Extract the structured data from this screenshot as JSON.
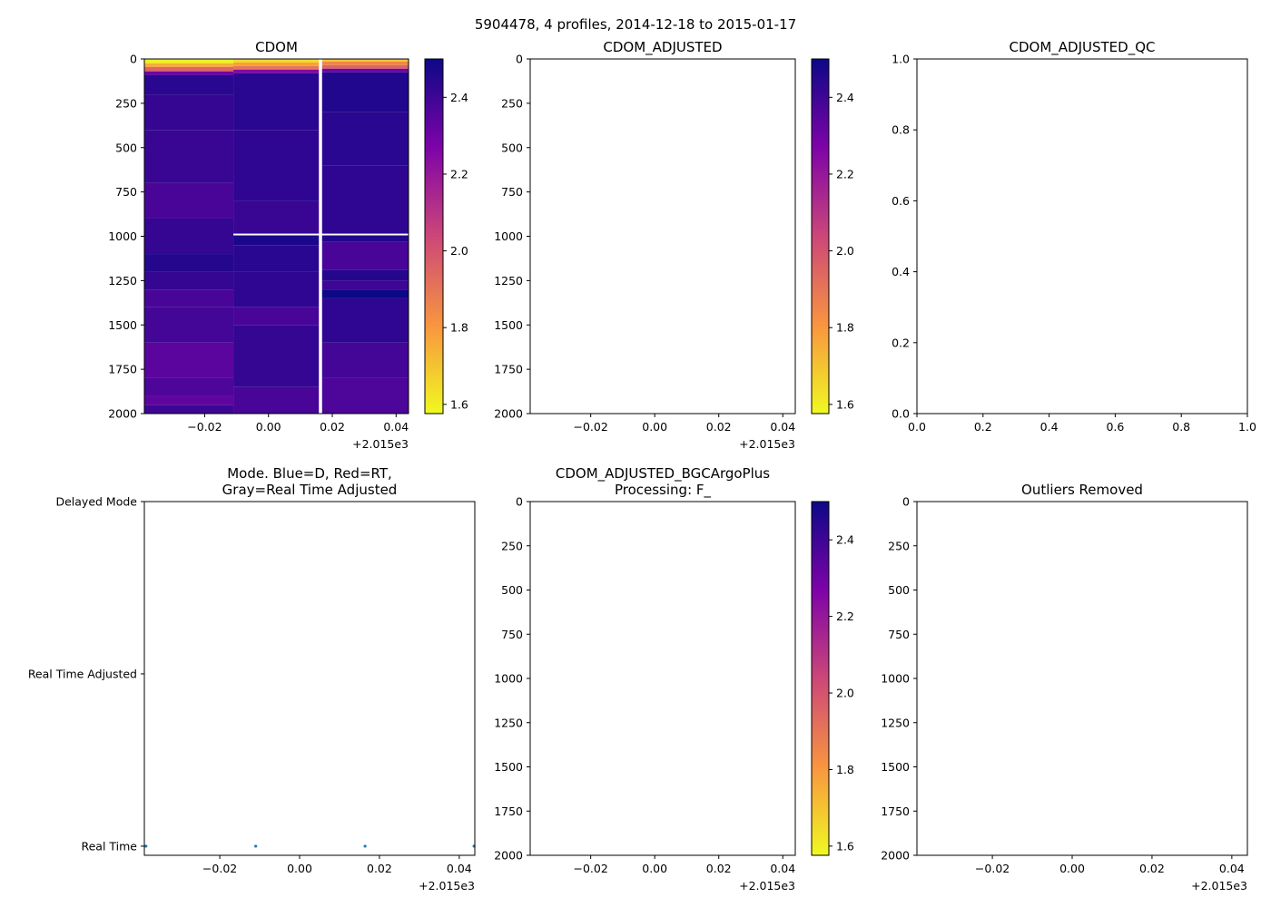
{
  "figure_title": "5904478, 4 profiles, 2014-12-18 to 2015-01-17",
  "colors": {
    "mode_point": "#1f77b4",
    "axis": "#000000",
    "missing": "#ffffff"
  },
  "chart_data": [
    {
      "id": "cdom",
      "type": "heatmap",
      "title_lines": [
        "CDOM"
      ],
      "xlim": [
        -0.0389,
        0.0439
      ],
      "ylim": [
        2000,
        0
      ],
      "xticks": [
        -0.02,
        0,
        0.02,
        0.04
      ],
      "xtick_labels": [
        "−0.02",
        "0.00",
        "0.02",
        "0.04"
      ],
      "x_offset": "+2.015e3",
      "yticks": [
        0,
        250,
        500,
        750,
        1000,
        1250,
        1500,
        1750,
        2000
      ],
      "ytick_labels": [
        "0",
        "250",
        "500",
        "750",
        "1000",
        "1250",
        "1500",
        "1750",
        "2000"
      ],
      "colorbar": {
        "cmap": "plasma_r",
        "vlim": [
          1.576,
          2.5
        ],
        "ticks": [
          1.6,
          1.8,
          2.0,
          2.2,
          2.4
        ],
        "tick_labels": [
          "1.6",
          "1.8",
          "2.0",
          "2.2",
          "2.4"
        ]
      },
      "columns": [
        {
          "x": [
            -0.0389,
            -0.011
          ],
          "bands": [
            [
              0,
              25,
              1.6
            ],
            [
              25,
              45,
              1.75
            ],
            [
              45,
              70,
              1.95
            ],
            [
              70,
              90,
              2.3
            ],
            [
              90,
              200,
              2.44
            ],
            [
              200,
              400,
              2.42
            ],
            [
              400,
              700,
              2.41
            ],
            [
              700,
              900,
              2.38
            ],
            [
              900,
              1100,
              2.42
            ],
            [
              1100,
              1200,
              2.45
            ],
            [
              1200,
              1300,
              2.42
            ],
            [
              1300,
              1400,
              2.38
            ],
            [
              1400,
              1600,
              2.39
            ],
            [
              1600,
              1800,
              2.34
            ],
            [
              1800,
              1900,
              2.37
            ],
            [
              1900,
              1950,
              2.33
            ],
            [
              1950,
              2000,
              2.4
            ]
          ]
        },
        {
          "x": [
            -0.011,
            0.0158
          ],
          "bands": [
            [
              0,
              20,
              1.65
            ],
            [
              20,
              40,
              1.78
            ],
            [
              40,
              60,
              1.9
            ],
            [
              60,
              80,
              2.25
            ],
            [
              80,
              400,
              2.44
            ],
            [
              400,
              800,
              2.43
            ],
            [
              800,
              985,
              2.41
            ],
            [
              995,
              1050,
              2.47
            ],
            [
              1050,
              1200,
              2.44
            ],
            [
              1200,
              1400,
              2.43
            ],
            [
              1400,
              1500,
              2.38
            ],
            [
              1500,
              1850,
              2.42
            ],
            [
              1850,
              2000,
              2.38
            ]
          ]
        },
        {
          "x": [
            0.0168,
            0.0439
          ],
          "bands": [
            [
              0,
              15,
              1.7
            ],
            [
              15,
              35,
              1.85
            ],
            [
              35,
              55,
              1.95
            ],
            [
              55,
              75,
              2.3
            ],
            [
              75,
              300,
              2.46
            ],
            [
              300,
              600,
              2.44
            ],
            [
              600,
              985,
              2.43
            ],
            [
              995,
              1030,
              2.46
            ],
            [
              1030,
              1190,
              2.38
            ],
            [
              1190,
              1250,
              2.45
            ],
            [
              1250,
              1300,
              2.4
            ],
            [
              1300,
              1350,
              2.5
            ],
            [
              1350,
              1600,
              2.43
            ],
            [
              1600,
              1800,
              2.39
            ],
            [
              1800,
              2000,
              2.37
            ]
          ]
        }
      ]
    },
    {
      "id": "cdom_adjusted",
      "type": "heatmap",
      "title_lines": [
        "CDOM_ADJUSTED"
      ],
      "xlim": [
        -0.0389,
        0.0439
      ],
      "ylim": [
        2000,
        0
      ],
      "xticks": [
        -0.02,
        0,
        0.02,
        0.04
      ],
      "xtick_labels": [
        "−0.02",
        "0.00",
        "0.02",
        "0.04"
      ],
      "x_offset": "+2.015e3",
      "yticks": [
        0,
        250,
        500,
        750,
        1000,
        1250,
        1500,
        1750,
        2000
      ],
      "ytick_labels": [
        "0",
        "250",
        "500",
        "750",
        "1000",
        "1250",
        "1500",
        "1750",
        "2000"
      ],
      "colorbar": {
        "cmap": "plasma_r",
        "vlim": [
          1.576,
          2.5
        ],
        "ticks": [
          1.6,
          1.8,
          2.0,
          2.2,
          2.4
        ],
        "tick_labels": [
          "1.6",
          "1.8",
          "2.0",
          "2.2",
          "2.4"
        ]
      },
      "columns": []
    },
    {
      "id": "cdom_adjusted_qc",
      "type": "scatter",
      "title_lines": [
        "CDOM_ADJUSTED_QC"
      ],
      "xlim": [
        0,
        1
      ],
      "ylim": [
        0,
        1
      ],
      "xticks": [
        0,
        0.2,
        0.4,
        0.6,
        0.8,
        1.0
      ],
      "xtick_labels": [
        "0.0",
        "0.2",
        "0.4",
        "0.6",
        "0.8",
        "1.0"
      ],
      "x_offset": "",
      "yticks": [
        0,
        0.2,
        0.4,
        0.6,
        0.8,
        1.0
      ],
      "ytick_labels": [
        "0.0",
        "0.2",
        "0.4",
        "0.6",
        "0.8",
        "1.0"
      ],
      "points": []
    },
    {
      "id": "mode",
      "type": "scatter",
      "title_lines": [
        "Mode. Blue=D, Red=RT,",
        "Gray=Real Time Adjusted"
      ],
      "xlim": [
        -0.0389,
        0.0439
      ],
      "ylim": [
        0.947,
        3
      ],
      "xticks": [
        -0.02,
        0,
        0.02,
        0.04
      ],
      "xtick_labels": [
        "−0.02",
        "0.00",
        "0.02",
        "0.04"
      ],
      "x_offset": "+2.015e3",
      "yticks": [
        1,
        2,
        3
      ],
      "ytick_labels": [
        "Real Time",
        "Real Time Adjusted",
        "Delayed Mode"
      ],
      "points": [
        [
          -0.0385,
          1
        ],
        [
          -0.011,
          1
        ],
        [
          0.0164,
          1
        ],
        [
          0.0437,
          1
        ]
      ]
    },
    {
      "id": "bgcargoplus",
      "type": "heatmap",
      "title_lines": [
        "CDOM_ADJUSTED_BGCArgoPlus",
        "Processing: F_"
      ],
      "xlim": [
        -0.0389,
        0.0439
      ],
      "ylim": [
        2000,
        0
      ],
      "xticks": [
        -0.02,
        0,
        0.02,
        0.04
      ],
      "xtick_labels": [
        "−0.02",
        "0.00",
        "0.02",
        "0.04"
      ],
      "x_offset": "+2.015e3",
      "yticks": [
        0,
        250,
        500,
        750,
        1000,
        1250,
        1500,
        1750,
        2000
      ],
      "ytick_labels": [
        "0",
        "250",
        "500",
        "750",
        "1000",
        "1250",
        "1500",
        "1750",
        "2000"
      ],
      "colorbar": {
        "cmap": "plasma_r",
        "vlim": [
          1.576,
          2.5
        ],
        "ticks": [
          1.6,
          1.8,
          2.0,
          2.2,
          2.4
        ],
        "tick_labels": [
          "1.6",
          "1.8",
          "2.0",
          "2.2",
          "2.4"
        ]
      },
      "columns": []
    },
    {
      "id": "outliers",
      "type": "scatter",
      "title_lines": [
        "Outliers Removed"
      ],
      "xlim": [
        -0.0389,
        0.0439
      ],
      "ylim": [
        2000,
        0
      ],
      "xticks": [
        -0.02,
        0,
        0.02,
        0.04
      ],
      "xtick_labels": [
        "−0.02",
        "0.00",
        "0.02",
        "0.04"
      ],
      "x_offset": "+2.015e3",
      "yticks": [
        0,
        250,
        500,
        750,
        1000,
        1250,
        1500,
        1750,
        2000
      ],
      "ytick_labels": [
        "0",
        "250",
        "500",
        "750",
        "1000",
        "1250",
        "1500",
        "1750",
        "2000"
      ],
      "points": []
    }
  ]
}
